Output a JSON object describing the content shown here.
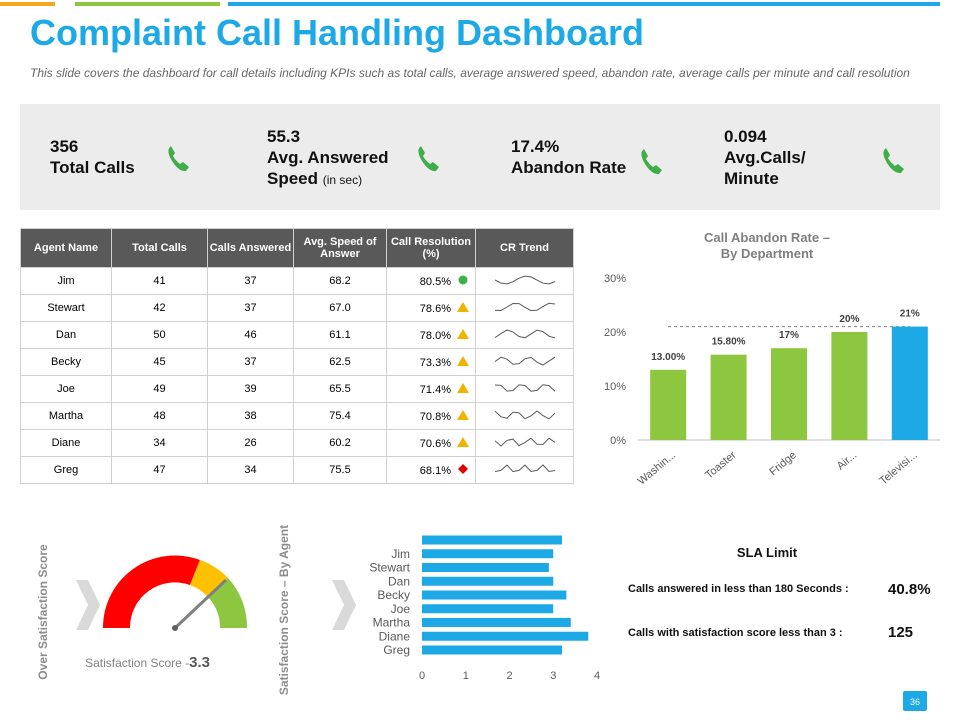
{
  "header": {
    "title": "Complaint Call Handling Dashboard",
    "subtitle": "This slide covers the dashboard for call details including KPIs such as total calls, average  answered  speed, abandon rate, average  calls per minute  and call resolution"
  },
  "kpis": [
    {
      "value": "356",
      "label": "Total Calls"
    },
    {
      "value": "55.3",
      "label": "Avg. Answered Speed",
      "unit": "(in sec)"
    },
    {
      "value": "17.4%",
      "label": "Abandon Rate"
    },
    {
      "value": "0.094",
      "label": "Avg.Calls/ Minute"
    }
  ],
  "table": {
    "header": [
      "Agent Name",
      "Total Calls",
      "Calls Answered",
      "Avg. Speed of Answer",
      "Call Resolution (%)",
      "CR Trend"
    ],
    "rows": [
      [
        "Jim",
        "41",
        "37",
        "68.2",
        "80.5%"
      ],
      [
        "Stewart",
        "42",
        "37",
        "67.0",
        "78.6%"
      ],
      [
        "Dan",
        "50",
        "46",
        "61.1",
        "78.0%"
      ],
      [
        "Becky",
        "45",
        "37",
        "62.5",
        "73.3%"
      ],
      [
        "Joe",
        "49",
        "39",
        "65.5",
        "71.4%"
      ],
      [
        "Martha",
        "48",
        "38",
        "75.4",
        "70.8%"
      ],
      [
        "Diane",
        "34",
        "26",
        "60.2",
        "70.6%"
      ],
      [
        "Greg",
        "47",
        "34",
        "75.5",
        "68.1%"
      ]
    ]
  },
  "chart_data": [
    {
      "type": "bar",
      "title": "Call Abandon Rate – By Department",
      "categories": [
        "Washin...",
        "Toaster",
        "Fridge",
        "Air...",
        "Televisi..."
      ],
      "values": [
        13,
        15.8,
        17,
        20,
        21
      ],
      "value_labels": [
        "13.00%",
        "15.80%",
        "17%",
        "20%",
        "21%"
      ],
      "colors": [
        "#8dc63f",
        "#8dc63f",
        "#8dc63f",
        "#8dc63f",
        "#1ca9e6"
      ],
      "ylim": [
        0,
        30
      ],
      "yticks": [
        {
          "value": 0,
          "label": "0%"
        },
        {
          "value": 10,
          "label": "10%"
        },
        {
          "value": 20,
          "label": "20%"
        },
        {
          "value": 30,
          "label": "30%"
        }
      ],
      "grid": false
    },
    {
      "type": "hbar",
      "categories": [
        null,
        "Jim",
        "Stewart",
        "Dan",
        "Becky",
        "Joe",
        "Martha",
        "Diane",
        "Greg"
      ],
      "values": [
        3.2,
        3.0,
        2.9,
        3.0,
        3.3,
        3.0,
        3.4,
        3.8,
        3.2
      ],
      "color": "#1ca9e6",
      "xlim": [
        0,
        4
      ],
      "xticks": [
        0,
        1,
        2,
        3,
        4
      ]
    }
  ],
  "gauge": {
    "side_label": "Over Satisfaction Score",
    "label": "Satisfaction Score -",
    "value": "3.3"
  },
  "agent_chart_label": "Satisfaction Score – By Agent",
  "sla": {
    "title": "SLA Limit",
    "items": [
      {
        "label": "Calls answered in less than 180 Seconds :",
        "value": "40.8%"
      },
      {
        "label": "Calls with satisfaction score less than 3 :",
        "value": "125"
      }
    ]
  },
  "page_number": "36"
}
